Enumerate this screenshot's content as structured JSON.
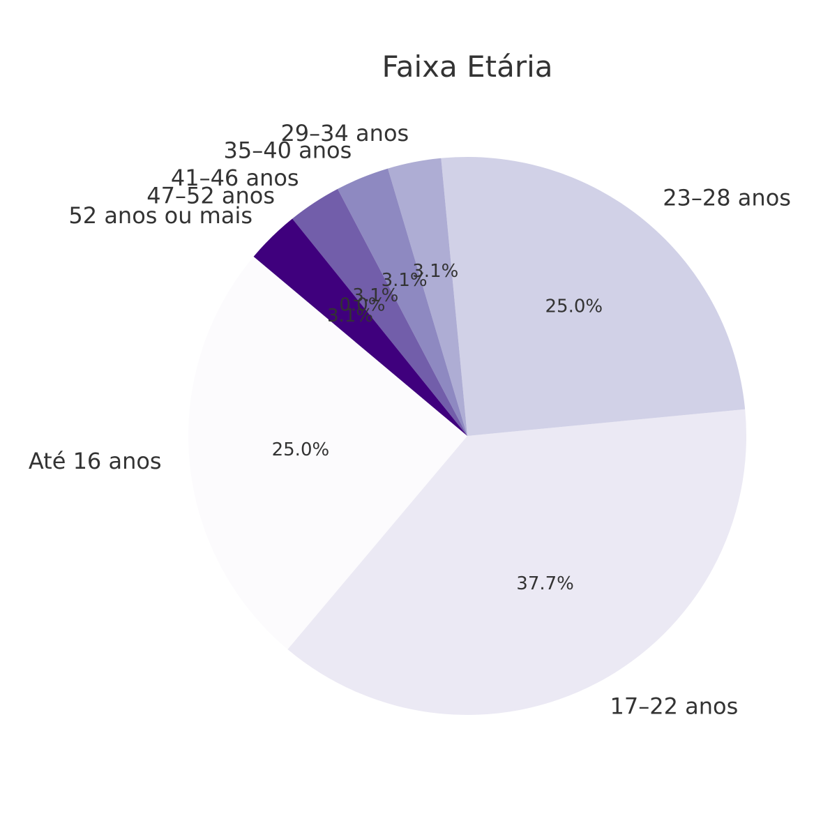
{
  "chart_data": {
    "type": "pie",
    "title": "Faixa Etária",
    "slices": [
      {
        "label": "Até 16 anos",
        "value": 25.0,
        "pct_text": "25.0%",
        "color": "#fcfbfd"
      },
      {
        "label": "17–22 anos",
        "value": 37.7,
        "pct_text": "37.7%",
        "color": "#ebe9f4"
      },
      {
        "label": "23–28 anos",
        "value": 25.0,
        "pct_text": "25.0%",
        "color": "#d1d1e7"
      },
      {
        "label": "29–34 anos",
        "value": 3.1,
        "pct_text": "3.1%",
        "color": "#aeadd4"
      },
      {
        "label": "35–40 anos",
        "value": 3.1,
        "pct_text": "3.1%",
        "color": "#8e89c1"
      },
      {
        "label": "41–46 anos",
        "value": 3.1,
        "pct_text": "3.1%",
        "color": "#725eaa"
      },
      {
        "label": "47–52 anos",
        "value": 0.0,
        "pct_text": "0.0%",
        "color": "#56409a"
      },
      {
        "label": "52 anos ou mais",
        "value": 3.1,
        "pct_text": "3.1%",
        "color": "#3f007d"
      }
    ],
    "start_angle_deg": 140,
    "direction": "counterclockwise"
  }
}
